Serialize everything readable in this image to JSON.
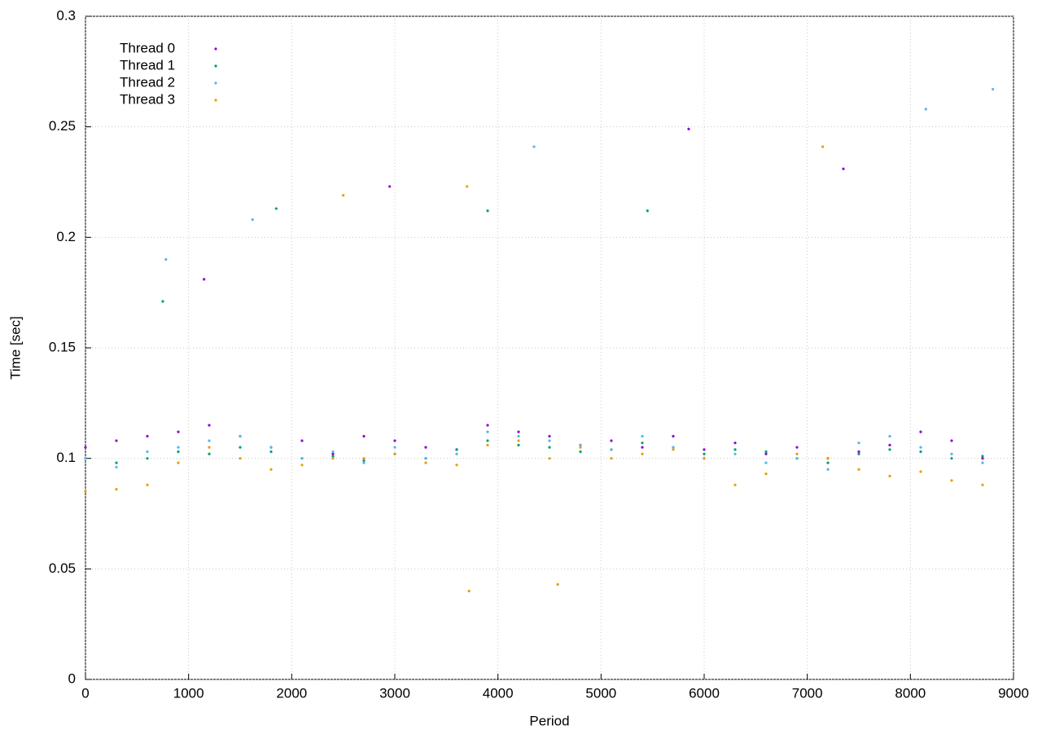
{
  "chart_data": {
    "type": "scatter",
    "xlabel": "Period",
    "ylabel": "Time [sec]",
    "xlim": [
      0,
      9000
    ],
    "ylim": [
      0,
      0.3
    ],
    "xticks": [
      0,
      1000,
      2000,
      3000,
      4000,
      5000,
      6000,
      7000,
      8000,
      9000
    ],
    "yticks": [
      0,
      0.05,
      0.1,
      0.15,
      0.2,
      0.25,
      0.3
    ],
    "grid": true,
    "legend": "top-left",
    "series": [
      {
        "name": "Thread 0",
        "color": "#9400d3",
        "x": [
          0,
          300,
          600,
          900,
          1200,
          1500,
          1800,
          2100,
          2400,
          2700,
          3000,
          3300,
          3600,
          3900,
          4200,
          4500,
          4800,
          5100,
          5400,
          5700,
          6000,
          6300,
          6600,
          6900,
          7200,
          7500,
          7800,
          8100,
          8400,
          8700,
          1150,
          2950,
          5850,
          7350
        ],
        "values": [
          0.105,
          0.108,
          0.11,
          0.112,
          0.115,
          0.11,
          0.105,
          0.108,
          0.102,
          0.11,
          0.108,
          0.105,
          0.104,
          0.115,
          0.112,
          0.11,
          0.106,
          0.108,
          0.105,
          0.11,
          0.104,
          0.107,
          0.102,
          0.105,
          0.1,
          0.103,
          0.106,
          0.112,
          0.108,
          0.1,
          0.181,
          0.223,
          0.249,
          0.231
        ]
      },
      {
        "name": "Thread 1",
        "color": "#009e73",
        "x": [
          0,
          300,
          600,
          900,
          1200,
          1500,
          1800,
          2100,
          2400,
          2700,
          3000,
          3300,
          3600,
          3900,
          4200,
          4500,
          4800,
          5100,
          5400,
          5700,
          6000,
          6300,
          6600,
          6900,
          7200,
          7500,
          7800,
          8100,
          8400,
          8700,
          750,
          1850,
          3900,
          5450
        ],
        "values": [
          0.1,
          0.098,
          0.1,
          0.103,
          0.102,
          0.105,
          0.103,
          0.1,
          0.101,
          0.099,
          0.102,
          0.1,
          0.104,
          0.108,
          0.106,
          0.105,
          0.103,
          0.104,
          0.107,
          0.105,
          0.102,
          0.104,
          0.103,
          0.1,
          0.098,
          0.102,
          0.104,
          0.103,
          0.1,
          0.101,
          0.171,
          0.213,
          0.212,
          0.212
        ]
      },
      {
        "name": "Thread 2",
        "color": "#56b4e9",
        "x": [
          0,
          300,
          600,
          900,
          1200,
          1500,
          1800,
          2100,
          2400,
          2700,
          3000,
          3300,
          3600,
          3900,
          4200,
          4500,
          4800,
          5100,
          5400,
          5700,
          6000,
          6300,
          6600,
          6900,
          7200,
          7500,
          7800,
          8100,
          8400,
          8700,
          780,
          1620,
          4350,
          8150,
          8800
        ],
        "values": [
          0.1,
          0.096,
          0.103,
          0.105,
          0.108,
          0.11,
          0.105,
          0.1,
          0.103,
          0.098,
          0.105,
          0.1,
          0.102,
          0.112,
          0.11,
          0.108,
          0.106,
          0.104,
          0.11,
          0.105,
          0.1,
          0.102,
          0.098,
          0.1,
          0.095,
          0.107,
          0.11,
          0.105,
          0.102,
          0.098,
          0.19,
          0.208,
          0.241,
          0.258,
          0.267
        ]
      },
      {
        "name": "Thread 3",
        "color": "#e69f00",
        "x": [
          0,
          300,
          600,
          900,
          1200,
          1500,
          1800,
          2100,
          2400,
          2700,
          3000,
          3300,
          3600,
          3900,
          4200,
          4500,
          4800,
          5100,
          5400,
          5700,
          6000,
          6300,
          6600,
          6900,
          7200,
          7500,
          7800,
          8100,
          8400,
          8700,
          2500,
          3700,
          7150,
          3720,
          4580
        ],
        "values": [
          0.085,
          0.086,
          0.088,
          0.098,
          0.105,
          0.1,
          0.095,
          0.097,
          0.1,
          0.1,
          0.102,
          0.098,
          0.097,
          0.106,
          0.108,
          0.1,
          0.105,
          0.1,
          0.102,
          0.104,
          0.1,
          0.088,
          0.093,
          0.102,
          0.1,
          0.095,
          0.092,
          0.094,
          0.09,
          0.088,
          0.219,
          0.223,
          0.241,
          0.04,
          0.043
        ]
      }
    ]
  }
}
